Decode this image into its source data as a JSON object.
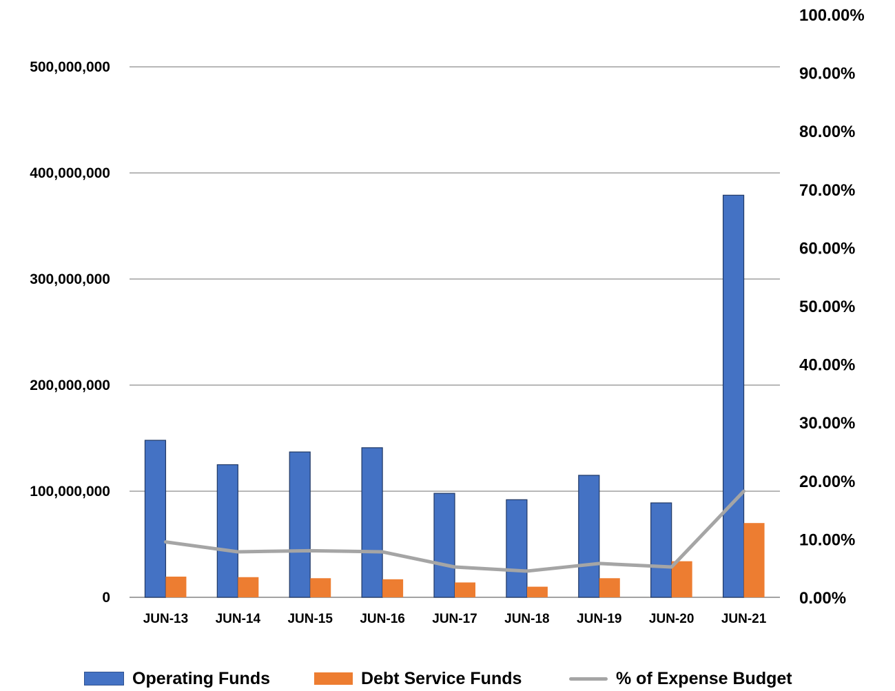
{
  "chart_data": {
    "type": "bar",
    "categories": [
      "JUN-13",
      "JUN-14",
      "JUN-15",
      "JUN-16",
      "JUN-17",
      "JUN-18",
      "JUN-19",
      "JUN-20",
      "JUN-21"
    ],
    "series": [
      {
        "name": "Operating Funds",
        "type": "bar",
        "axis": "left",
        "color": "#4472C4",
        "values": [
          148000000,
          125000000,
          137000000,
          141000000,
          98000000,
          92000000,
          115000000,
          89000000,
          379000000
        ]
      },
      {
        "name": "Debt Service Funds",
        "type": "bar",
        "axis": "left",
        "color": "#ED7D31",
        "values": [
          19500000,
          19000000,
          18000000,
          17000000,
          14000000,
          10000000,
          18000000,
          34000000,
          70000000
        ]
      },
      {
        "name": "% of Expense Budget",
        "type": "line",
        "axis": "right",
        "color": "#A5A5A5",
        "values": [
          9.5,
          7.8,
          8.0,
          7.8,
          5.2,
          4.5,
          5.8,
          5.2,
          18.2
        ]
      }
    ],
    "y_left": {
      "ylim": [
        0,
        500000000
      ],
      "ticks": [
        0,
        100000000,
        200000000,
        300000000,
        400000000,
        500000000
      ],
      "tick_labels": [
        "0",
        "100,000,000",
        "200,000,000",
        "300,000,000",
        "400,000,000",
        "500,000,000"
      ]
    },
    "y_right": {
      "ylim": [
        0,
        100
      ],
      "ticks": [
        0,
        10,
        20,
        30,
        40,
        50,
        60,
        70,
        80,
        90,
        100
      ],
      "tick_labels": [
        "0.00%",
        "10.00%",
        "20.00%",
        "30.00%",
        "40.00%",
        "50.00%",
        "60.00%",
        "70.00%",
        "80.00%",
        "90.00%",
        "100.00%"
      ]
    },
    "grid": true,
    "legend_position": "bottom",
    "title": "",
    "xlabel": "",
    "ylabel": ""
  },
  "legend": {
    "items": [
      {
        "label": "Operating Funds",
        "kind": "bar",
        "color": "#4472C4"
      },
      {
        "label": "Debt Service Funds",
        "kind": "bar",
        "color": "#ED7D31"
      },
      {
        "label": "% of Expense Budget",
        "kind": "line",
        "color": "#A5A5A5"
      }
    ]
  }
}
